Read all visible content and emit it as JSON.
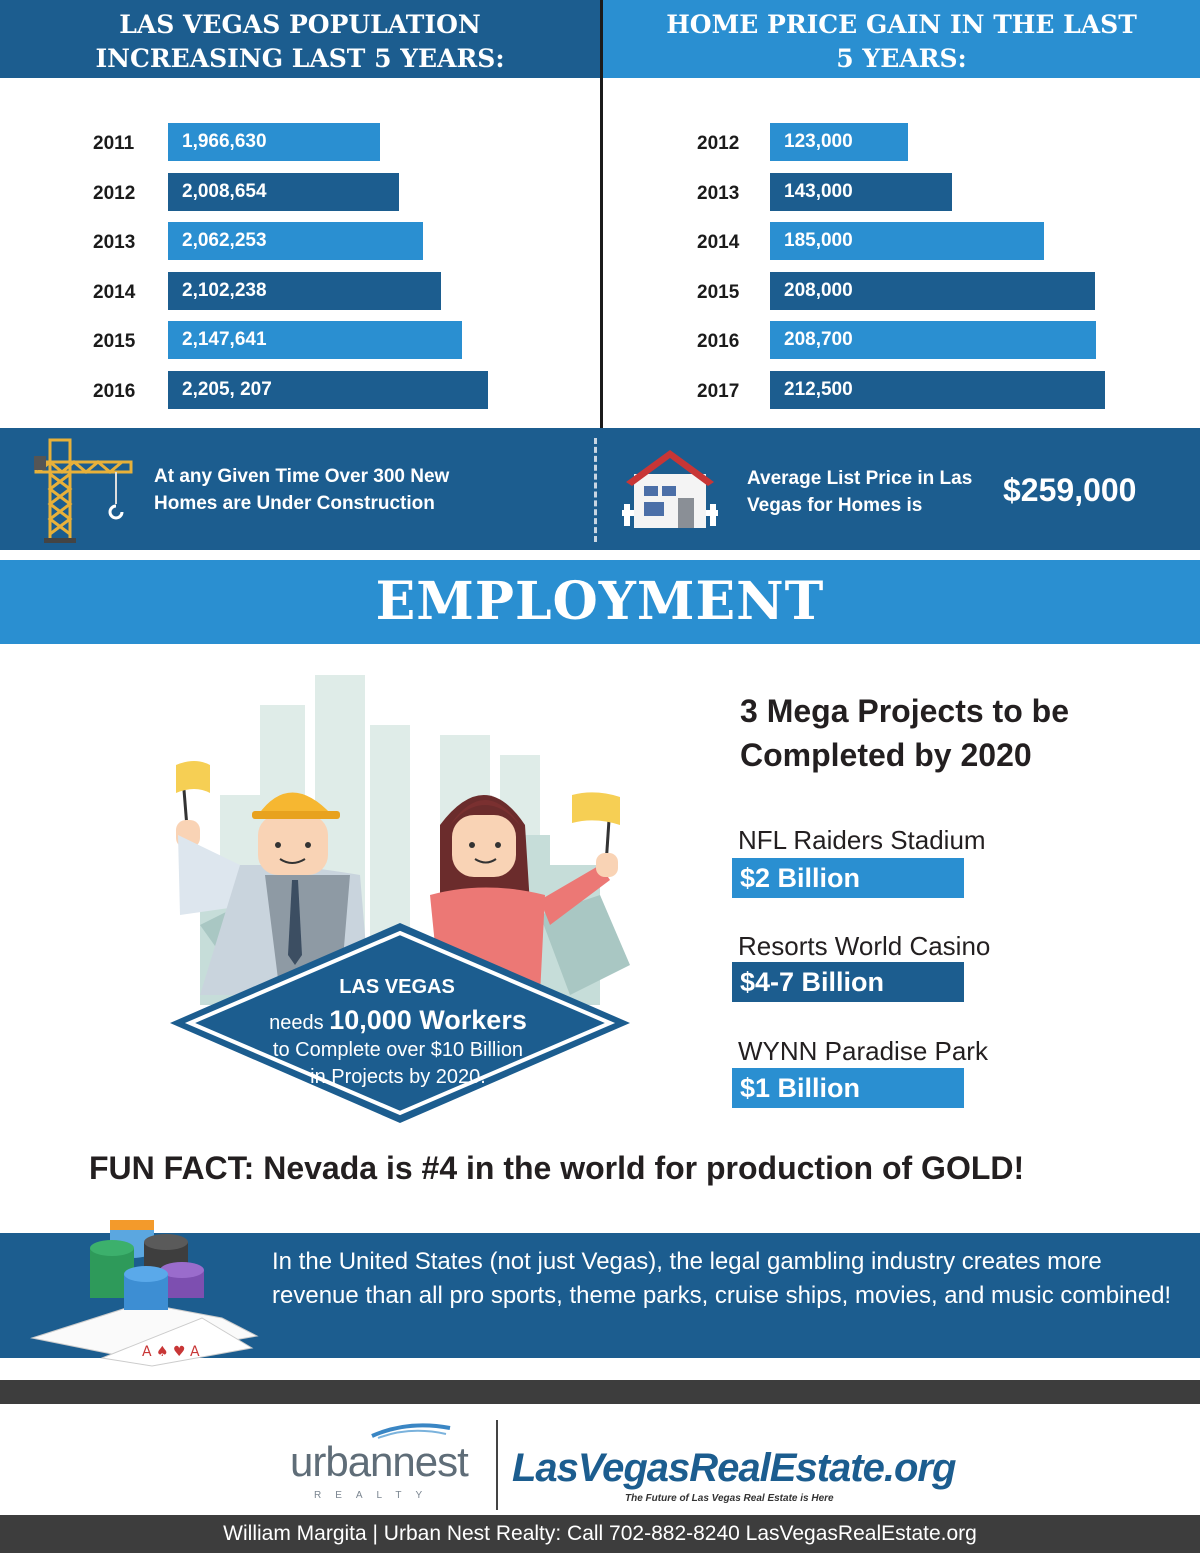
{
  "headers": {
    "population_title": "LAS VEGAS POPULATION INCREASING LAST 5 YEARS:",
    "price_title": "HOME PRICE GAIN IN THE LAST 5 YEARS:"
  },
  "chart_data": [
    {
      "type": "bar",
      "orientation": "horizontal",
      "title": "LAS VEGAS POPULATION INCREASING LAST 5 YEARS:",
      "categories": [
        "2011",
        "2012",
        "2013",
        "2014",
        "2015",
        "2016"
      ],
      "values": [
        1966630,
        2008654,
        2062253,
        2102238,
        2147641,
        2205207
      ],
      "labels": [
        "1,966,630",
        "2,008,654",
        "2,062,253",
        "2,102,238",
        "2,147,641",
        "2,205, 207"
      ],
      "xlim": [
        1500000,
        2250000
      ]
    },
    {
      "type": "bar",
      "orientation": "horizontal",
      "title": "HOME PRICE GAIN IN THE LAST 5 YEARS:",
      "categories": [
        "2012",
        "2013",
        "2014",
        "2015",
        "2016",
        "2017"
      ],
      "values": [
        123000,
        143000,
        185000,
        208000,
        208700,
        212500
      ],
      "labels": [
        "123,000",
        "143,000",
        "185,000",
        "208,000",
        "208,700",
        "212,500"
      ],
      "xlim": [
        60000,
        215000
      ]
    }
  ],
  "band": {
    "construction_text": "At any Given Time Over 300 New Homes are Under Construction",
    "price_text": "Average List Price in Las Vegas for Homes is",
    "price_value": "$259,000"
  },
  "employment": {
    "title": "EMPLOYMENT",
    "diamond": {
      "line1": "LAS VEGAS",
      "line2_prefix": "needs ",
      "line2_bold": "10,000 Workers",
      "line3": "to Complete over $10 Billion",
      "line4": "in Projects by 2020."
    },
    "mega_title_line1": "3 Mega Projects to be",
    "mega_title_line2": "Completed by 2020",
    "projects": [
      {
        "name": "NFL Raiders Stadium",
        "amount": "$2 Billion"
      },
      {
        "name": "Resorts World Casino",
        "amount": "$4-7 Billion"
      },
      {
        "name": "WYNN Paradise Park",
        "amount": "$1 Billion"
      }
    ]
  },
  "fun_fact": "FUN FACT: Nevada is #4 in the world for production of GOLD!",
  "gambling_text": "In the United States (not just Vegas), the legal gambling industry creates more revenue than all pro sports, theme parks, cruise ships, movies, and music combined!",
  "logos": {
    "urbannest_word": "urbannest",
    "urbannest_sub": "REALTY",
    "brand": "LasVegasRealEstate.org",
    "tagline": "The Future of Las Vegas Real Estate is Here"
  },
  "footer": "William Margita | Urban Nest Realty: Call 702-882-8240 LasVegasRealEstate.org",
  "colors": {
    "dark_blue": "#1c5d8f",
    "light_blue": "#2a8fd1",
    "footer_gray": "#3d3d3d"
  }
}
